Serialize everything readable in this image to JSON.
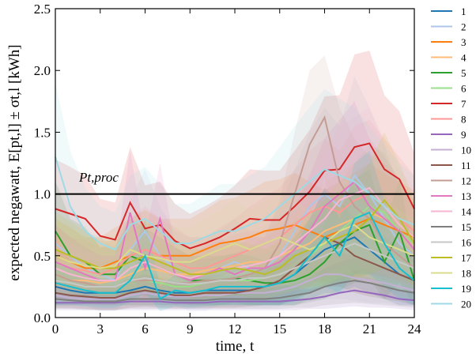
{
  "chart_data": {
    "type": "line",
    "xlabel": "time, t",
    "ylabel": "expected negawatt, E[pt,l] ± σt,l [kWh]",
    "annotation": "Pt,proc",
    "hline": 1.0,
    "x": [
      0,
      1,
      2,
      3,
      4,
      5,
      6,
      7,
      8,
      9,
      10,
      11,
      12,
      13,
      14,
      15,
      16,
      17,
      18,
      19,
      20,
      21,
      22,
      23,
      24
    ],
    "xlim": [
      0,
      24
    ],
    "xticks": [
      0,
      3,
      6,
      9,
      12,
      15,
      18,
      21,
      24
    ],
    "ylim": [
      0,
      2.5
    ],
    "yticks": [
      {
        "value": 0,
        "label": "0.0"
      },
      0.5,
      {
        "value": 1,
        "label": "1.0"
      },
      1.5,
      {
        "value": 2,
        "label": "2.0"
      },
      2.5
    ],
    "series": [
      {
        "name": "1",
        "color": "#1f77b4",
        "values": [
          0.25,
          0.22,
          0.2,
          0.2,
          0.2,
          0.22,
          0.25,
          0.22,
          0.2,
          0.2,
          0.22,
          0.22,
          0.22,
          0.22,
          0.25,
          0.28,
          0.35,
          0.45,
          0.55,
          0.6,
          0.65,
          0.55,
          0.45,
          0.35,
          0.3
        ],
        "errors": [
          0.15,
          0.12,
          0.1,
          0.1,
          0.1,
          0.12,
          0.15,
          0.12,
          0.1,
          0.1,
          0.12,
          0.12,
          0.12,
          0.12,
          0.15,
          0.18,
          0.25,
          0.3,
          0.35,
          0.4,
          0.4,
          0.35,
          0.3,
          0.25,
          0.2
        ]
      },
      {
        "name": "2",
        "color": "#aec7e8",
        "values": [
          0.6,
          0.5,
          0.4,
          0.35,
          0.3,
          0.55,
          0.7,
          0.5,
          0.4,
          0.35,
          0.35,
          0.4,
          0.45,
          0.4,
          0.4,
          0.5,
          0.7,
          0.9,
          1.0,
          0.9,
          1.15,
          1.0,
          0.8,
          0.6,
          0.5
        ],
        "errors": [
          0.5,
          0.4,
          0.3,
          0.3,
          0.25,
          0.4,
          0.5,
          0.4,
          0.3,
          0.3,
          0.3,
          0.3,
          0.35,
          0.3,
          0.3,
          0.4,
          0.5,
          0.6,
          0.7,
          0.65,
          0.8,
          0.7,
          0.6,
          0.45,
          0.4
        ]
      },
      {
        "name": "3",
        "color": "#ff7f0e",
        "values": [
          0.5,
          0.45,
          0.4,
          0.4,
          0.45,
          0.5,
          0.55,
          0.5,
          0.5,
          0.5,
          0.55,
          0.6,
          0.62,
          0.65,
          0.7,
          0.72,
          0.75,
          0.7,
          0.65,
          0.7,
          0.75,
          0.8,
          0.75,
          0.7,
          0.65
        ],
        "errors": [
          0.3,
          0.28,
          0.25,
          0.25,
          0.28,
          0.3,
          0.32,
          0.3,
          0.3,
          0.3,
          0.32,
          0.35,
          0.35,
          0.38,
          0.4,
          0.4,
          0.42,
          0.4,
          0.38,
          0.4,
          0.42,
          0.45,
          0.42,
          0.4,
          0.38
        ]
      },
      {
        "name": "4",
        "color": "#ffbb78",
        "values": [
          0.35,
          0.3,
          0.3,
          0.28,
          0.3,
          0.35,
          0.4,
          0.38,
          0.35,
          0.35,
          0.38,
          0.4,
          0.42,
          0.45,
          0.45,
          0.5,
          0.55,
          0.6,
          0.7,
          0.75,
          0.8,
          0.85,
          0.8,
          0.7,
          0.6
        ],
        "errors": [
          0.2,
          0.18,
          0.18,
          0.17,
          0.18,
          0.2,
          0.22,
          0.22,
          0.2,
          0.2,
          0.22,
          0.22,
          0.25,
          0.25,
          0.25,
          0.28,
          0.3,
          0.35,
          0.4,
          0.42,
          0.45,
          0.48,
          0.45,
          0.4,
          0.35
        ]
      },
      {
        "name": "5",
        "color": "#2ca02c",
        "values": [
          0.7,
          0.5,
          0.45,
          0.35,
          0.35,
          0.5,
          0.45,
          0.4,
          0.35,
          0.3,
          0.3,
          0.3,
          0.32,
          0.3,
          0.28,
          0.28,
          0.3,
          0.35,
          0.45,
          0.6,
          0.7,
          0.75,
          0.45,
          0.7,
          0.3
        ],
        "errors": [
          0.4,
          0.3,
          0.28,
          0.22,
          0.22,
          0.3,
          0.28,
          0.25,
          0.22,
          0.2,
          0.2,
          0.2,
          0.2,
          0.2,
          0.18,
          0.18,
          0.2,
          0.22,
          0.3,
          0.38,
          0.42,
          0.45,
          0.3,
          0.42,
          0.2
        ]
      },
      {
        "name": "6",
        "color": "#98df8a",
        "values": [
          0.3,
          0.28,
          0.25,
          0.25,
          0.25,
          0.3,
          0.3,
          0.28,
          0.25,
          0.25,
          0.28,
          0.3,
          0.3,
          0.3,
          0.32,
          0.35,
          0.4,
          0.5,
          0.6,
          0.7,
          0.8,
          0.9,
          0.85,
          0.7,
          0.6
        ],
        "errors": [
          0.2,
          0.18,
          0.15,
          0.15,
          0.15,
          0.2,
          0.2,
          0.18,
          0.15,
          0.15,
          0.18,
          0.2,
          0.2,
          0.2,
          0.2,
          0.22,
          0.25,
          0.3,
          0.35,
          0.4,
          0.45,
          0.5,
          0.48,
          0.4,
          0.35
        ]
      },
      {
        "name": "7",
        "color": "#d62728",
        "values": [
          0.88,
          0.84,
          0.8,
          0.66,
          0.63,
          0.93,
          0.72,
          0.75,
          0.62,
          0.56,
          0.6,
          0.65,
          0.72,
          0.8,
          0.79,
          0.79,
          0.9,
          1.02,
          1.19,
          1.2,
          1.38,
          1.41,
          1.2,
          1.12,
          0.88
        ],
        "errors": [
          0.4,
          0.38,
          0.35,
          0.3,
          0.3,
          0.45,
          0.35,
          0.35,
          0.3,
          0.28,
          0.3,
          0.32,
          0.35,
          0.4,
          0.4,
          0.4,
          0.45,
          0.5,
          0.6,
          0.6,
          0.75,
          0.75,
          0.6,
          0.55,
          0.45
        ]
      },
      {
        "name": "8",
        "color": "#ff9896",
        "values": [
          0.45,
          0.4,
          0.38,
          0.35,
          0.4,
          0.5,
          0.55,
          0.5,
          0.45,
          0.4,
          0.4,
          0.45,
          0.5,
          0.55,
          0.6,
          0.65,
          0.75,
          0.85,
          0.9,
          0.85,
          0.95,
          1.0,
          0.9,
          0.8,
          0.7
        ],
        "errors": [
          0.3,
          0.25,
          0.25,
          0.22,
          0.25,
          0.3,
          0.35,
          0.3,
          0.28,
          0.25,
          0.25,
          0.28,
          0.3,
          0.35,
          0.38,
          0.4,
          0.45,
          0.5,
          0.55,
          0.5,
          0.6,
          0.6,
          0.55,
          0.5,
          0.45
        ]
      },
      {
        "name": "9",
        "color": "#9467bd",
        "values": [
          0.12,
          0.12,
          0.12,
          0.12,
          0.12,
          0.13,
          0.13,
          0.13,
          0.12,
          0.12,
          0.12,
          0.13,
          0.13,
          0.13,
          0.13,
          0.13,
          0.14,
          0.15,
          0.17,
          0.2,
          0.22,
          0.2,
          0.18,
          0.15,
          0.14
        ],
        "errors": [
          0.06,
          0.06,
          0.06,
          0.06,
          0.06,
          0.07,
          0.07,
          0.07,
          0.06,
          0.06,
          0.06,
          0.07,
          0.07,
          0.07,
          0.07,
          0.07,
          0.08,
          0.08,
          0.1,
          0.12,
          0.13,
          0.12,
          0.1,
          0.08,
          0.08
        ]
      },
      {
        "name": "10",
        "color": "#c5b0d5",
        "values": [
          0.18,
          0.16,
          0.15,
          0.15,
          0.15,
          0.18,
          0.2,
          0.18,
          0.17,
          0.17,
          0.18,
          0.18,
          0.2,
          0.2,
          0.2,
          0.22,
          0.25,
          0.3,
          0.35,
          0.35,
          0.32,
          0.3,
          0.28,
          0.25,
          0.22
        ],
        "errors": [
          0.1,
          0.09,
          0.08,
          0.08,
          0.08,
          0.1,
          0.12,
          0.1,
          0.1,
          0.1,
          0.1,
          0.1,
          0.12,
          0.12,
          0.12,
          0.13,
          0.15,
          0.18,
          0.2,
          0.2,
          0.18,
          0.18,
          0.16,
          0.15,
          0.13
        ]
      },
      {
        "name": "11",
        "color": "#8c564b",
        "values": [
          0.2,
          0.18,
          0.17,
          0.16,
          0.16,
          0.2,
          0.22,
          0.2,
          0.18,
          0.18,
          0.2,
          0.2,
          0.2,
          0.22,
          0.25,
          0.3,
          0.4,
          0.5,
          0.65,
          0.6,
          0.5,
          0.45,
          0.4,
          0.35,
          0.3
        ],
        "errors": [
          0.12,
          0.1,
          0.1,
          0.1,
          0.1,
          0.12,
          0.13,
          0.12,
          0.1,
          0.1,
          0.12,
          0.12,
          0.12,
          0.13,
          0.15,
          0.2,
          0.25,
          0.3,
          0.4,
          0.35,
          0.3,
          0.28,
          0.25,
          0.22,
          0.2
        ]
      },
      {
        "name": "12",
        "color": "#c49c94",
        "values": [
          0.35,
          0.3,
          0.28,
          0.25,
          0.25,
          0.3,
          0.3,
          0.3,
          0.28,
          0.28,
          0.3,
          0.3,
          0.32,
          0.35,
          0.4,
          0.6,
          1.0,
          1.4,
          1.62,
          1.1,
          0.9,
          0.8,
          0.6,
          0.5,
          0.4
        ],
        "errors": [
          0.2,
          0.18,
          0.17,
          0.15,
          0.15,
          0.18,
          0.18,
          0.18,
          0.17,
          0.17,
          0.18,
          0.18,
          0.2,
          0.22,
          0.25,
          0.35,
          0.5,
          0.6,
          0.5,
          0.6,
          0.55,
          0.5,
          0.4,
          0.32,
          0.25
        ]
      },
      {
        "name": "13",
        "color": "#e377c2",
        "values": [
          0.45,
          0.4,
          0.35,
          0.3,
          0.3,
          0.85,
          0.4,
          0.8,
          0.35,
          0.3,
          0.35,
          0.4,
          0.35,
          0.4,
          0.4,
          0.45,
          0.55,
          0.7,
          0.9,
          1.0,
          1.1,
          0.9,
          0.8,
          0.7,
          0.55
        ],
        "errors": [
          0.3,
          0.25,
          0.22,
          0.2,
          0.2,
          0.5,
          0.25,
          0.45,
          0.22,
          0.2,
          0.22,
          0.25,
          0.22,
          0.25,
          0.25,
          0.28,
          0.35,
          0.45,
          0.55,
          0.6,
          0.65,
          0.55,
          0.5,
          0.42,
          0.35
        ]
      },
      {
        "name": "14",
        "color": "#f7b6d2",
        "values": [
          0.4,
          0.35,
          0.32,
          0.3,
          0.3,
          0.4,
          0.45,
          0.4,
          0.35,
          0.32,
          0.35,
          0.38,
          0.4,
          0.42,
          0.45,
          0.5,
          0.6,
          0.7,
          0.8,
          0.95,
          1.0,
          1.05,
          0.9,
          0.75,
          0.65
        ],
        "errors": [
          0.28,
          0.25,
          0.22,
          0.2,
          0.2,
          0.28,
          0.3,
          0.28,
          0.25,
          0.22,
          0.25,
          0.25,
          0.28,
          0.28,
          0.3,
          0.32,
          0.38,
          0.45,
          0.5,
          0.6,
          0.62,
          0.65,
          0.55,
          0.45,
          0.4
        ]
      },
      {
        "name": "15",
        "color": "#7f7f7f",
        "values": [
          0.15,
          0.14,
          0.13,
          0.13,
          0.13,
          0.15,
          0.15,
          0.15,
          0.14,
          0.14,
          0.14,
          0.15,
          0.15,
          0.15,
          0.15,
          0.16,
          0.18,
          0.2,
          0.25,
          0.28,
          0.3,
          0.28,
          0.25,
          0.22,
          0.2
        ],
        "errors": [
          0.08,
          0.07,
          0.07,
          0.07,
          0.07,
          0.08,
          0.08,
          0.08,
          0.07,
          0.07,
          0.07,
          0.08,
          0.08,
          0.08,
          0.08,
          0.09,
          0.1,
          0.12,
          0.15,
          0.17,
          0.18,
          0.17,
          0.15,
          0.13,
          0.12
        ]
      },
      {
        "name": "16",
        "color": "#c7c7c7",
        "values": [
          0.3,
          0.28,
          0.25,
          0.25,
          0.25,
          0.3,
          0.32,
          0.3,
          0.28,
          0.27,
          0.28,
          0.3,
          0.3,
          0.32,
          0.32,
          0.35,
          0.4,
          0.45,
          0.5,
          0.55,
          0.6,
          0.55,
          0.5,
          0.45,
          0.4
        ],
        "errors": [
          0.18,
          0.17,
          0.15,
          0.15,
          0.15,
          0.18,
          0.2,
          0.18,
          0.17,
          0.16,
          0.17,
          0.18,
          0.18,
          0.2,
          0.2,
          0.22,
          0.25,
          0.28,
          0.3,
          0.32,
          0.35,
          0.32,
          0.3,
          0.28,
          0.25
        ]
      },
      {
        "name": "17",
        "color": "#bcbd22",
        "values": [
          0.55,
          0.5,
          0.45,
          0.4,
          0.4,
          0.45,
          0.5,
          0.45,
          0.4,
          0.35,
          0.35,
          0.38,
          0.4,
          0.38,
          0.35,
          0.4,
          0.5,
          0.55,
          0.6,
          0.65,
          0.7,
          0.8,
          0.95,
          0.8,
          0.6
        ],
        "errors": [
          0.3,
          0.28,
          0.25,
          0.22,
          0.22,
          0.25,
          0.28,
          0.25,
          0.22,
          0.2,
          0.2,
          0.22,
          0.22,
          0.22,
          0.2,
          0.22,
          0.28,
          0.3,
          0.35,
          0.38,
          0.4,
          0.45,
          0.55,
          0.45,
          0.35
        ]
      },
      {
        "name": "18",
        "color": "#dbdb8d",
        "values": [
          0.5,
          0.45,
          0.42,
          0.4,
          0.42,
          0.55,
          0.5,
          0.48,
          0.45,
          0.45,
          0.5,
          0.55,
          0.6,
          0.55,
          0.6,
          0.65,
          0.6,
          0.55,
          0.6,
          0.7,
          0.75,
          0.65,
          0.6,
          0.55,
          0.5
        ],
        "errors": [
          0.3,
          0.28,
          0.25,
          0.25,
          0.25,
          0.32,
          0.3,
          0.28,
          0.28,
          0.28,
          0.3,
          0.32,
          0.35,
          0.32,
          0.35,
          0.38,
          0.35,
          0.32,
          0.35,
          0.4,
          0.42,
          0.38,
          0.35,
          0.32,
          0.3
        ]
      },
      {
        "name": "19",
        "color": "#17becf",
        "values": [
          0.28,
          0.25,
          0.22,
          0.2,
          0.2,
          0.3,
          0.5,
          0.15,
          0.22,
          0.2,
          0.22,
          0.25,
          0.25,
          0.25,
          0.25,
          0.28,
          0.35,
          0.5,
          0.65,
          0.5,
          0.8,
          0.85,
          0.6,
          0.4,
          0.3
        ],
        "errors": [
          0.18,
          0.15,
          0.13,
          0.12,
          0.12,
          0.18,
          0.3,
          0.1,
          0.13,
          0.12,
          0.13,
          0.15,
          0.15,
          0.15,
          0.15,
          0.18,
          0.22,
          0.3,
          0.4,
          0.3,
          0.45,
          0.5,
          0.35,
          0.25,
          0.2
        ]
      },
      {
        "name": "20",
        "color": "#9edae5",
        "values": [
          1.3,
          0.9,
          0.7,
          0.6,
          0.55,
          0.75,
          0.8,
          0.7,
          0.6,
          0.6,
          0.65,
          0.7,
          0.7,
          0.75,
          0.8,
          0.9,
          1.0,
          1.1,
          1.2,
          1.15,
          1.1,
          1.0,
          0.9,
          0.8,
          0.75
        ],
        "errors": [
          0.6,
          0.45,
          0.35,
          0.3,
          0.3,
          0.4,
          0.42,
          0.38,
          0.32,
          0.32,
          0.35,
          0.38,
          0.38,
          0.4,
          0.42,
          0.48,
          0.55,
          0.6,
          0.65,
          0.62,
          0.6,
          0.55,
          0.5,
          0.45,
          0.4
        ]
      }
    ]
  }
}
